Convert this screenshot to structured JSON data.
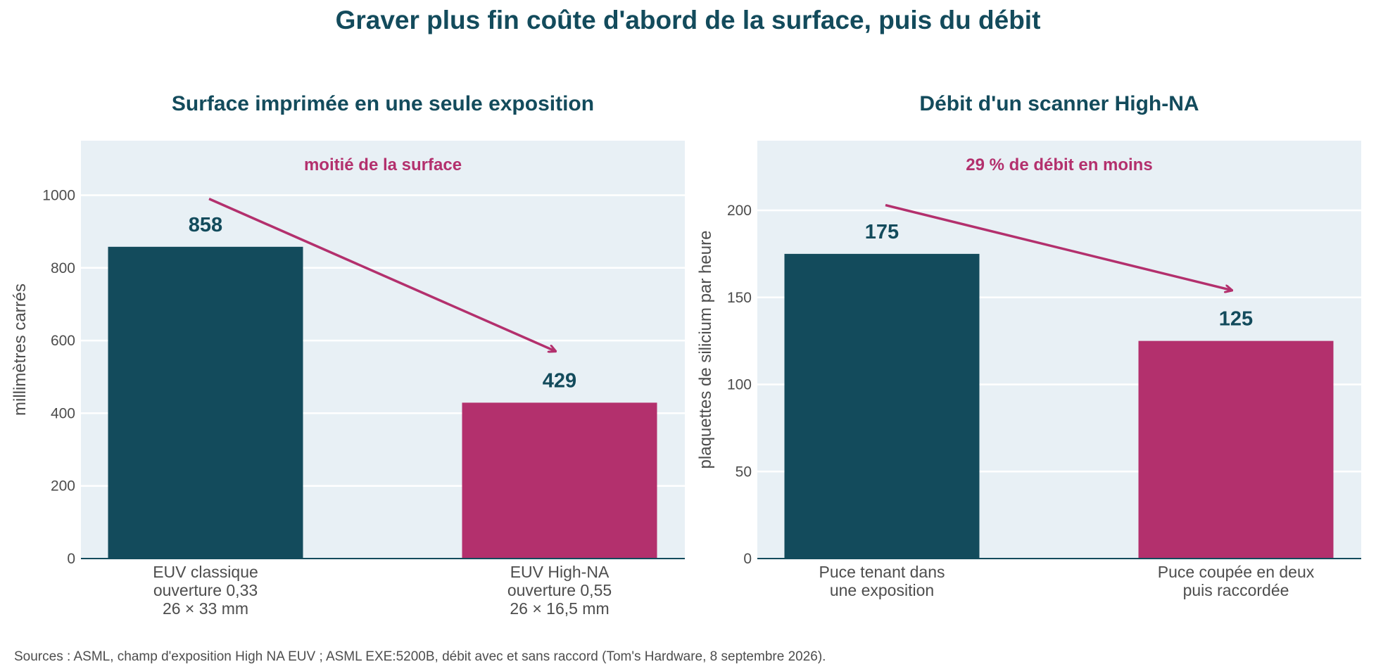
{
  "title": "Graver plus fin coûte d'abord de la surface, puis du débit",
  "source": "Sources : ASML, champ d'exposition High NA EUV ; ASML EXE:5200B, débit avec et sans raccord (Tom's Hardware, 8 septembre 2026).",
  "colors": {
    "dark": "#134b5c",
    "accent": "#b3306d",
    "panel_bg": "#e8f0f5",
    "grid": "#ffffff",
    "text": "#4d4d4d"
  },
  "chart_data": [
    {
      "type": "bar",
      "title": "Surface imprimée en une seule exposition",
      "annotation": "moitié de la surface",
      "ylabel": "millimètres carrés",
      "ylim": [
        0,
        1150
      ],
      "yticks": [
        0,
        200,
        400,
        600,
        800,
        1000
      ],
      "categories": [
        [
          "EUV classique",
          "ouverture 0,33",
          "26 × 33 mm"
        ],
        [
          "EUV High-NA",
          "ouverture 0,55",
          "26 × 16,5 mm"
        ]
      ],
      "values": [
        858,
        429
      ],
      "value_labels": [
        "858",
        "429"
      ],
      "bar_colors": [
        "#134b5c",
        "#b3306d"
      ],
      "arrow": {
        "from": [
          0.01,
          990
        ],
        "to": [
          0.99,
          570
        ]
      },
      "grid": true
    },
    {
      "type": "bar",
      "title": "Débit d'un scanner High-NA",
      "annotation": "29 % de débit en moins",
      "ylabel": "plaquettes de silicium par heure",
      "ylim": [
        0,
        240
      ],
      "yticks": [
        0,
        50,
        100,
        150,
        200
      ],
      "categories": [
        [
          "Puce tenant dans",
          "une exposition"
        ],
        [
          "Puce coupée en deux",
          "puis raccordée"
        ]
      ],
      "values": [
        175,
        125
      ],
      "value_labels": [
        "175",
        "125"
      ],
      "bar_colors": [
        "#134b5c",
        "#b3306d"
      ],
      "arrow": {
        "from": [
          0.01,
          203
        ],
        "to": [
          0.99,
          154
        ]
      },
      "grid": true
    }
  ]
}
